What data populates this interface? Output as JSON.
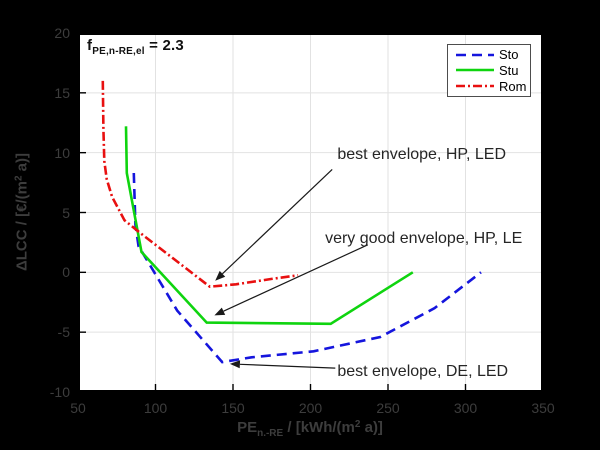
{
  "figure": {
    "background": "#000000",
    "plot_background": "#ffffff",
    "grid_color": "#e2e2e2",
    "axis_color": "#000000",
    "outside_text_color": "#3d3d3d"
  },
  "f_label": {
    "symbol": "f",
    "subscript": "PE,n-RE,el",
    "value": " = 2.3"
  },
  "x_axis": {
    "label_pre": "PE",
    "label_sub": "n.-RE",
    "label_mid": " / [kWh/(m",
    "label_sup": "2",
    "label_post": " a)]"
  },
  "y_axis": {
    "label_pre": "ΔLCC / [€/(m",
    "label_sup": "2",
    "label_post": " a)]"
  },
  "chart_data": {
    "type": "line",
    "title": "",
    "xlabel": "PE_n.-RE / [kWh/(m^2 a)]",
    "ylabel": "ΔLCC / [€/(m^2 a)]",
    "xlim": [
      50,
      350
    ],
    "ylim": [
      -10,
      20
    ],
    "x_ticks": [
      50,
      100,
      150,
      200,
      250,
      300,
      350
    ],
    "y_ticks": [
      -10,
      -5,
      0,
      5,
      10,
      15,
      20
    ],
    "grid": true,
    "legend_position": "top-right",
    "series": [
      {
        "name": "Sto",
        "color": "#1515dd",
        "style": "dashed",
        "points": [
          [
            86,
            8.3
          ],
          [
            87,
            4.0
          ],
          [
            89,
            2.2
          ],
          [
            114,
            -3.2
          ],
          [
            143,
            -7.5
          ],
          [
            162,
            -7.1
          ],
          [
            202,
            -6.6
          ],
          [
            245,
            -5.4
          ],
          [
            280,
            -3.0
          ],
          [
            310,
            0
          ]
        ]
      },
      {
        "name": "Stu",
        "color": "#0fd40f",
        "style": "solid",
        "points": [
          [
            81,
            12.2
          ],
          [
            81.5,
            8.3
          ],
          [
            91,
            1.7
          ],
          [
            133,
            -4.2
          ],
          [
            213,
            -4.3
          ],
          [
            266,
            0
          ]
        ]
      },
      {
        "name": "Rom",
        "color": "#e81010",
        "style": "dashdot",
        "points": [
          [
            66,
            16
          ],
          [
            66.4,
            12
          ],
          [
            67,
            9.3
          ],
          [
            68.5,
            7.8
          ],
          [
            72,
            6.3
          ],
          [
            80,
            4.35
          ],
          [
            90,
            3.3
          ],
          [
            135,
            -1.2
          ],
          [
            152,
            -1.0
          ],
          [
            175,
            -0.55
          ],
          [
            192,
            -0.25
          ]
        ]
      }
    ],
    "annotations": [
      {
        "text": "best envelope, HP, LED",
        "text_pos": [
          217.3,
          9.8
        ],
        "arrow_from": [
          214,
          8.6
        ],
        "arrow_to": [
          138.5,
          -0.7
        ]
      },
      {
        "text": "very good envelope, HP, LE",
        "text_pos": [
          209.4,
          2.8
        ],
        "arrow_from": [
          237,
          2.3
        ],
        "arrow_to": [
          138,
          -3.6
        ]
      },
      {
        "text": "best envelope, DE, LED",
        "text_pos": [
          217.3,
          -8.35
        ],
        "arrow_from": [
          216,
          -8.0
        ],
        "arrow_to": [
          148,
          -7.65
        ]
      }
    ]
  }
}
